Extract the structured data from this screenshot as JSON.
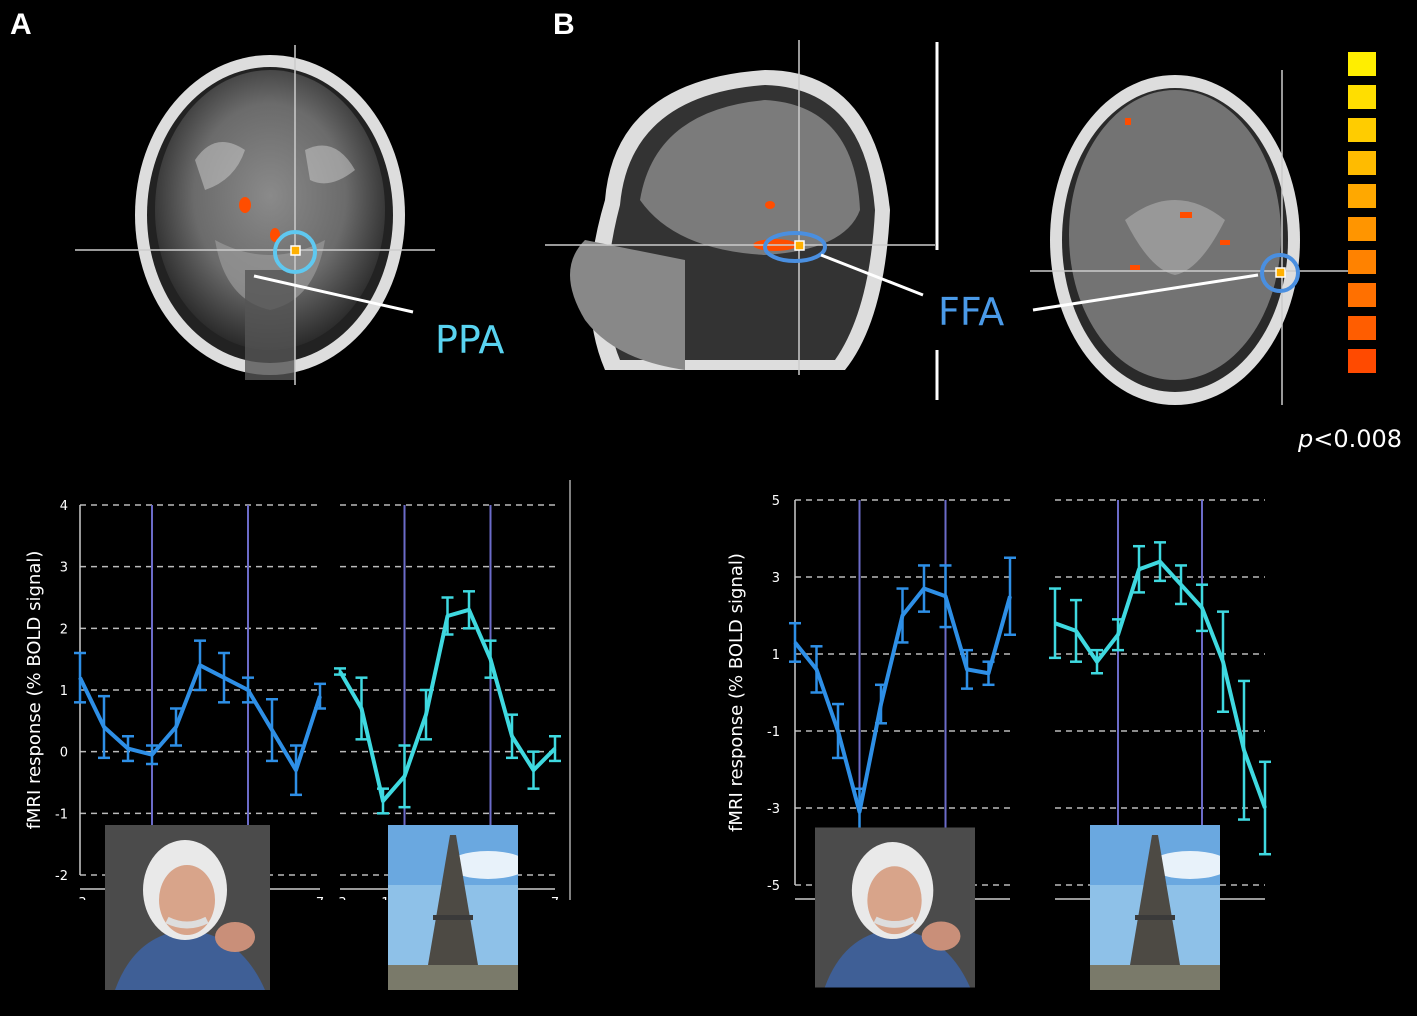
{
  "panels": {
    "a_label": "A",
    "b_label": "B"
  },
  "roi": {
    "ppa": "PPA",
    "ffa": "FFA"
  },
  "threshold": {
    "prefix": "p",
    "rest": "<0.008"
  },
  "colors": {
    "background": "#000000",
    "ppa_circle": "#5fc8f0",
    "ffa_circle": "#4a8fe0",
    "face_series": "#2e8fe6",
    "place_series": "#3fd9e0",
    "label_cyan": "#59d3f0",
    "label_blue": "#4a9ae8",
    "scale": [
      "#ffee00",
      "#ffde00",
      "#ffcc00",
      "#ffbb00",
      "#ffa800",
      "#ff9500",
      "#ff8200",
      "#ff7000",
      "#ff5d00",
      "#ff4a00"
    ]
  },
  "chart_data": [
    {
      "type": "line",
      "panel": "A",
      "subplot": "face",
      "ylabel": "fMRI response (% BOLD signal)",
      "ylim": [
        -2,
        4
      ],
      "yticks": [
        "4",
        "3",
        "2",
        "1",
        "0",
        "-1",
        "-2"
      ],
      "xticks": [
        "-3",
        "-1",
        "7"
      ],
      "x": [
        -3,
        -2,
        -1,
        0,
        1,
        2,
        3,
        4,
        5,
        6,
        7
      ],
      "series": [
        {
          "values": [
            1.2,
            0.4,
            0.05,
            -0.05,
            0.4,
            1.4,
            1.2,
            1.0,
            0.35,
            -0.3,
            0.9
          ],
          "errors": [
            0.4,
            0.5,
            0.2,
            0.15,
            0.3,
            0.4,
            0.4,
            0.2,
            0.5,
            0.4,
            0.2
          ]
        }
      ]
    },
    {
      "type": "line",
      "panel": "A",
      "subplot": "place",
      "ylim": [
        -2,
        4
      ],
      "xticks": [
        "-3",
        "-1",
        "7"
      ],
      "x": [
        -3,
        -2,
        -1,
        0,
        1,
        2,
        3,
        4,
        5,
        6,
        7
      ],
      "series": [
        {
          "values": [
            1.3,
            0.7,
            -0.8,
            -0.4,
            0.6,
            2.2,
            2.3,
            1.5,
            0.25,
            -0.3,
            0.05
          ],
          "errors": [
            0.05,
            0.5,
            0.2,
            0.5,
            0.4,
            0.3,
            0.3,
            0.3,
            0.35,
            0.3,
            0.2
          ]
        }
      ]
    },
    {
      "type": "line",
      "panel": "B",
      "subplot": "face",
      "ylabel": "fMRI response (% BOLD signal)",
      "ylim": [
        -5,
        5
      ],
      "yticks": [
        "5",
        "3",
        "1",
        "-1",
        "-3",
        "-5"
      ],
      "xticks": [
        "-3",
        "7"
      ],
      "x": [
        -3,
        -2,
        -1,
        0,
        1,
        2,
        3,
        4,
        5,
        6,
        7
      ],
      "series": [
        {
          "values": [
            1.3,
            0.6,
            -1.0,
            -3.1,
            -0.3,
            2.0,
            2.7,
            2.5,
            0.6,
            0.5,
            2.5
          ],
          "errors": [
            0.5,
            0.6,
            0.7,
            0.6,
            0.5,
            0.7,
            0.6,
            0.8,
            0.5,
            0.3,
            1.0
          ]
        }
      ]
    },
    {
      "type": "line",
      "panel": "B",
      "subplot": "place",
      "ylim": [
        -5,
        5
      ],
      "xticks": [
        "-3",
        "7"
      ],
      "x": [
        -3,
        -2,
        -1,
        0,
        1,
        2,
        3,
        4,
        5,
        6,
        7
      ],
      "series": [
        {
          "values": [
            1.8,
            1.6,
            0.8,
            1.5,
            3.2,
            3.4,
            2.8,
            2.2,
            0.8,
            -1.5,
            -3.0
          ],
          "errors": [
            0.9,
            0.8,
            0.3,
            0.4,
            0.6,
            0.5,
            0.5,
            0.6,
            1.3,
            1.8,
            1.2
          ]
        }
      ]
    }
  ]
}
